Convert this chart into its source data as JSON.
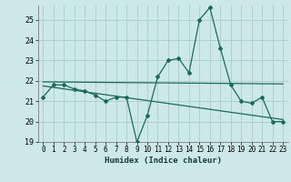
{
  "title": "",
  "xlabel": "Humidex (Indice chaleur)",
  "ylabel": "",
  "background_color": "#cde8e8",
  "grid_color": "#b0d0d0",
  "line_color": "#1a6b5a",
  "xlim": [
    -0.5,
    23.5
  ],
  "ylim": [
    19,
    25.7
  ],
  "yticks": [
    19,
    20,
    21,
    22,
    23,
    24,
    25
  ],
  "xticks": [
    0,
    1,
    2,
    3,
    4,
    5,
    6,
    7,
    8,
    9,
    10,
    11,
    12,
    13,
    14,
    15,
    16,
    17,
    18,
    19,
    20,
    21,
    22,
    23
  ],
  "main_x": [
    0,
    1,
    2,
    3,
    4,
    5,
    6,
    7,
    8,
    9,
    10,
    11,
    12,
    13,
    14,
    15,
    16,
    17,
    18,
    19,
    20,
    21,
    22,
    23
  ],
  "main_y": [
    21.2,
    21.8,
    21.8,
    21.6,
    21.5,
    21.3,
    21.0,
    21.2,
    21.2,
    19.0,
    20.3,
    22.2,
    23.0,
    23.1,
    22.4,
    25.0,
    25.6,
    23.6,
    21.8,
    21.0,
    20.9,
    21.2,
    20.0,
    20.0
  ],
  "trend1_x": [
    0,
    23
  ],
  "trend1_y": [
    21.95,
    21.85
  ],
  "trend2_x": [
    0,
    23
  ],
  "trend2_y": [
    21.75,
    20.1
  ]
}
